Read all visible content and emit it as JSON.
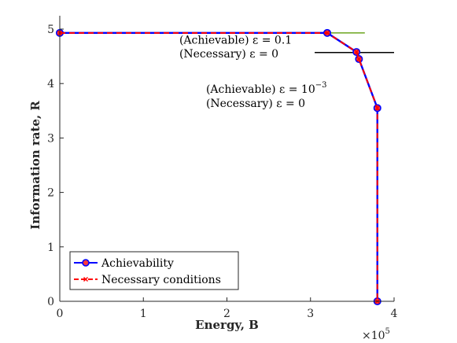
{
  "chart_data": {
    "type": "line",
    "xlabel": "Energy, B",
    "ylabel": "Information rate, R",
    "xlim": [
      0,
      400000
    ],
    "ylim": [
      0,
      5
    ],
    "x_exponent_label": "×10",
    "x_exponent_sup": "5",
    "x_tick_labels": [
      "0",
      "1",
      "2",
      "3",
      "4"
    ],
    "y_tick_labels": [
      "0",
      "1",
      "2",
      "3",
      "4",
      "5"
    ],
    "grid": false,
    "legend_position": "bottom-left",
    "series": [
      {
        "name": "Achievability",
        "color": "#0000ff",
        "style": "solid-circle-markers",
        "x": [
          0,
          320000,
          355000,
          358000,
          380000,
          380000
        ],
        "y": [
          4.93,
          4.93,
          4.58,
          4.45,
          3.55,
          0
        ]
      },
      {
        "name": "Necessary conditions",
        "color": "#ff0000",
        "style": "dashed-x-markers",
        "x": [
          0,
          320000,
          355000,
          358000,
          380000,
          380000
        ],
        "y": [
          4.93,
          4.93,
          4.58,
          4.45,
          3.55,
          0
        ]
      }
    ],
    "reference_lines": [
      {
        "color": "#77ac30",
        "x": [
          275000,
          365000
        ],
        "y": [
          4.93,
          4.93
        ]
      },
      {
        "color": "#000000",
        "x": [
          305000,
          400000
        ],
        "y": [
          4.57,
          4.57
        ]
      }
    ],
    "annotations": [
      {
        "text": "(Achievable) ε = 0.1",
        "x": 143000,
        "y": 4.73
      },
      {
        "text": "(Necessary) ε = 0",
        "x": 143000,
        "y": 4.48
      },
      {
        "text": "(Achievable) ε = 10",
        "sup": "−3",
        "x": 175000,
        "y": 3.83
      },
      {
        "text": "(Necessary) ε = 0",
        "x": 175000,
        "y": 3.57
      }
    ]
  }
}
